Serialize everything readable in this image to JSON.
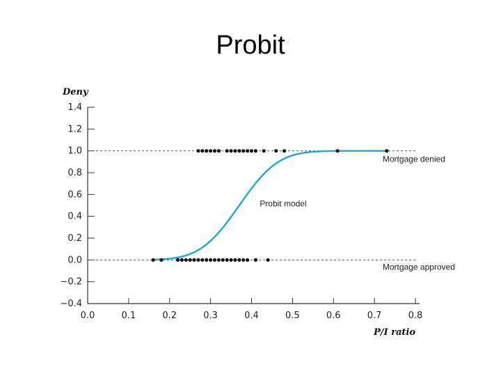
{
  "slide": {
    "title": "Probit"
  },
  "chart_data": {
    "type": "scatter",
    "xlabel": "P/I ratio",
    "ylabel": "Deny",
    "xlim": [
      0.0,
      0.8
    ],
    "ylim": [
      -0.4,
      1.4
    ],
    "x_ticks": [
      0.0,
      0.1,
      0.2,
      0.3,
      0.4,
      0.5,
      0.6,
      0.7,
      0.8
    ],
    "x_tick_labels": [
      "0.0",
      "0.1",
      "0.2",
      "0.3",
      "0.4",
      "0.5",
      "0.6",
      "0.7",
      "0.8"
    ],
    "y_ticks": [
      -0.4,
      -0.2,
      0.0,
      0.2,
      0.4,
      0.6,
      0.8,
      1.0,
      1.2,
      1.4
    ],
    "y_tick_labels": [
      "−0.4",
      "−0.2",
      "0.0",
      "0.2",
      "0.4",
      "0.6",
      "0.8",
      "1.0",
      "1.2",
      "1.4"
    ],
    "reference_lines": [
      0.0,
      1.0
    ],
    "grid": false,
    "colors": {
      "curve": "#1ea6d8",
      "points": "#111111",
      "reference": "#555555",
      "axis": "#333333"
    },
    "series": [
      {
        "type": "scatter",
        "x": [
          0.27,
          0.28,
          0.29,
          0.3,
          0.31,
          0.32,
          0.34,
          0.35,
          0.36,
          0.37,
          0.38,
          0.39,
          0.4,
          0.41,
          0.43,
          0.46,
          0.48,
          0.61,
          0.73
        ],
        "y": [
          1,
          1,
          1,
          1,
          1,
          1,
          1,
          1,
          1,
          1,
          1,
          1,
          1,
          1,
          1,
          1,
          1,
          1,
          1
        ]
      },
      {
        "type": "scatter",
        "x": [
          0.16,
          0.18,
          0.22,
          0.23,
          0.24,
          0.25,
          0.26,
          0.27,
          0.28,
          0.29,
          0.3,
          0.31,
          0.32,
          0.33,
          0.34,
          0.35,
          0.36,
          0.37,
          0.38,
          0.39,
          0.41,
          0.44
        ],
        "y": [
          0,
          0,
          0,
          0,
          0,
          0,
          0,
          0,
          0,
          0,
          0,
          0,
          0,
          0,
          0,
          0,
          0,
          0,
          0,
          0,
          0,
          0
        ]
      },
      {
        "type": "line",
        "model": "probit",
        "x_range": [
          0.16,
          0.73
        ],
        "mu": 0.37,
        "sigma": 0.075
      }
    ],
    "annotations": [
      {
        "text": "Mortgage denied",
        "x": 0.72,
        "y": 0.9
      },
      {
        "text": "Probit model",
        "x": 0.42,
        "y": 0.49
      },
      {
        "text": "Mortgage approved",
        "x": 0.72,
        "y": -0.09
      }
    ]
  }
}
